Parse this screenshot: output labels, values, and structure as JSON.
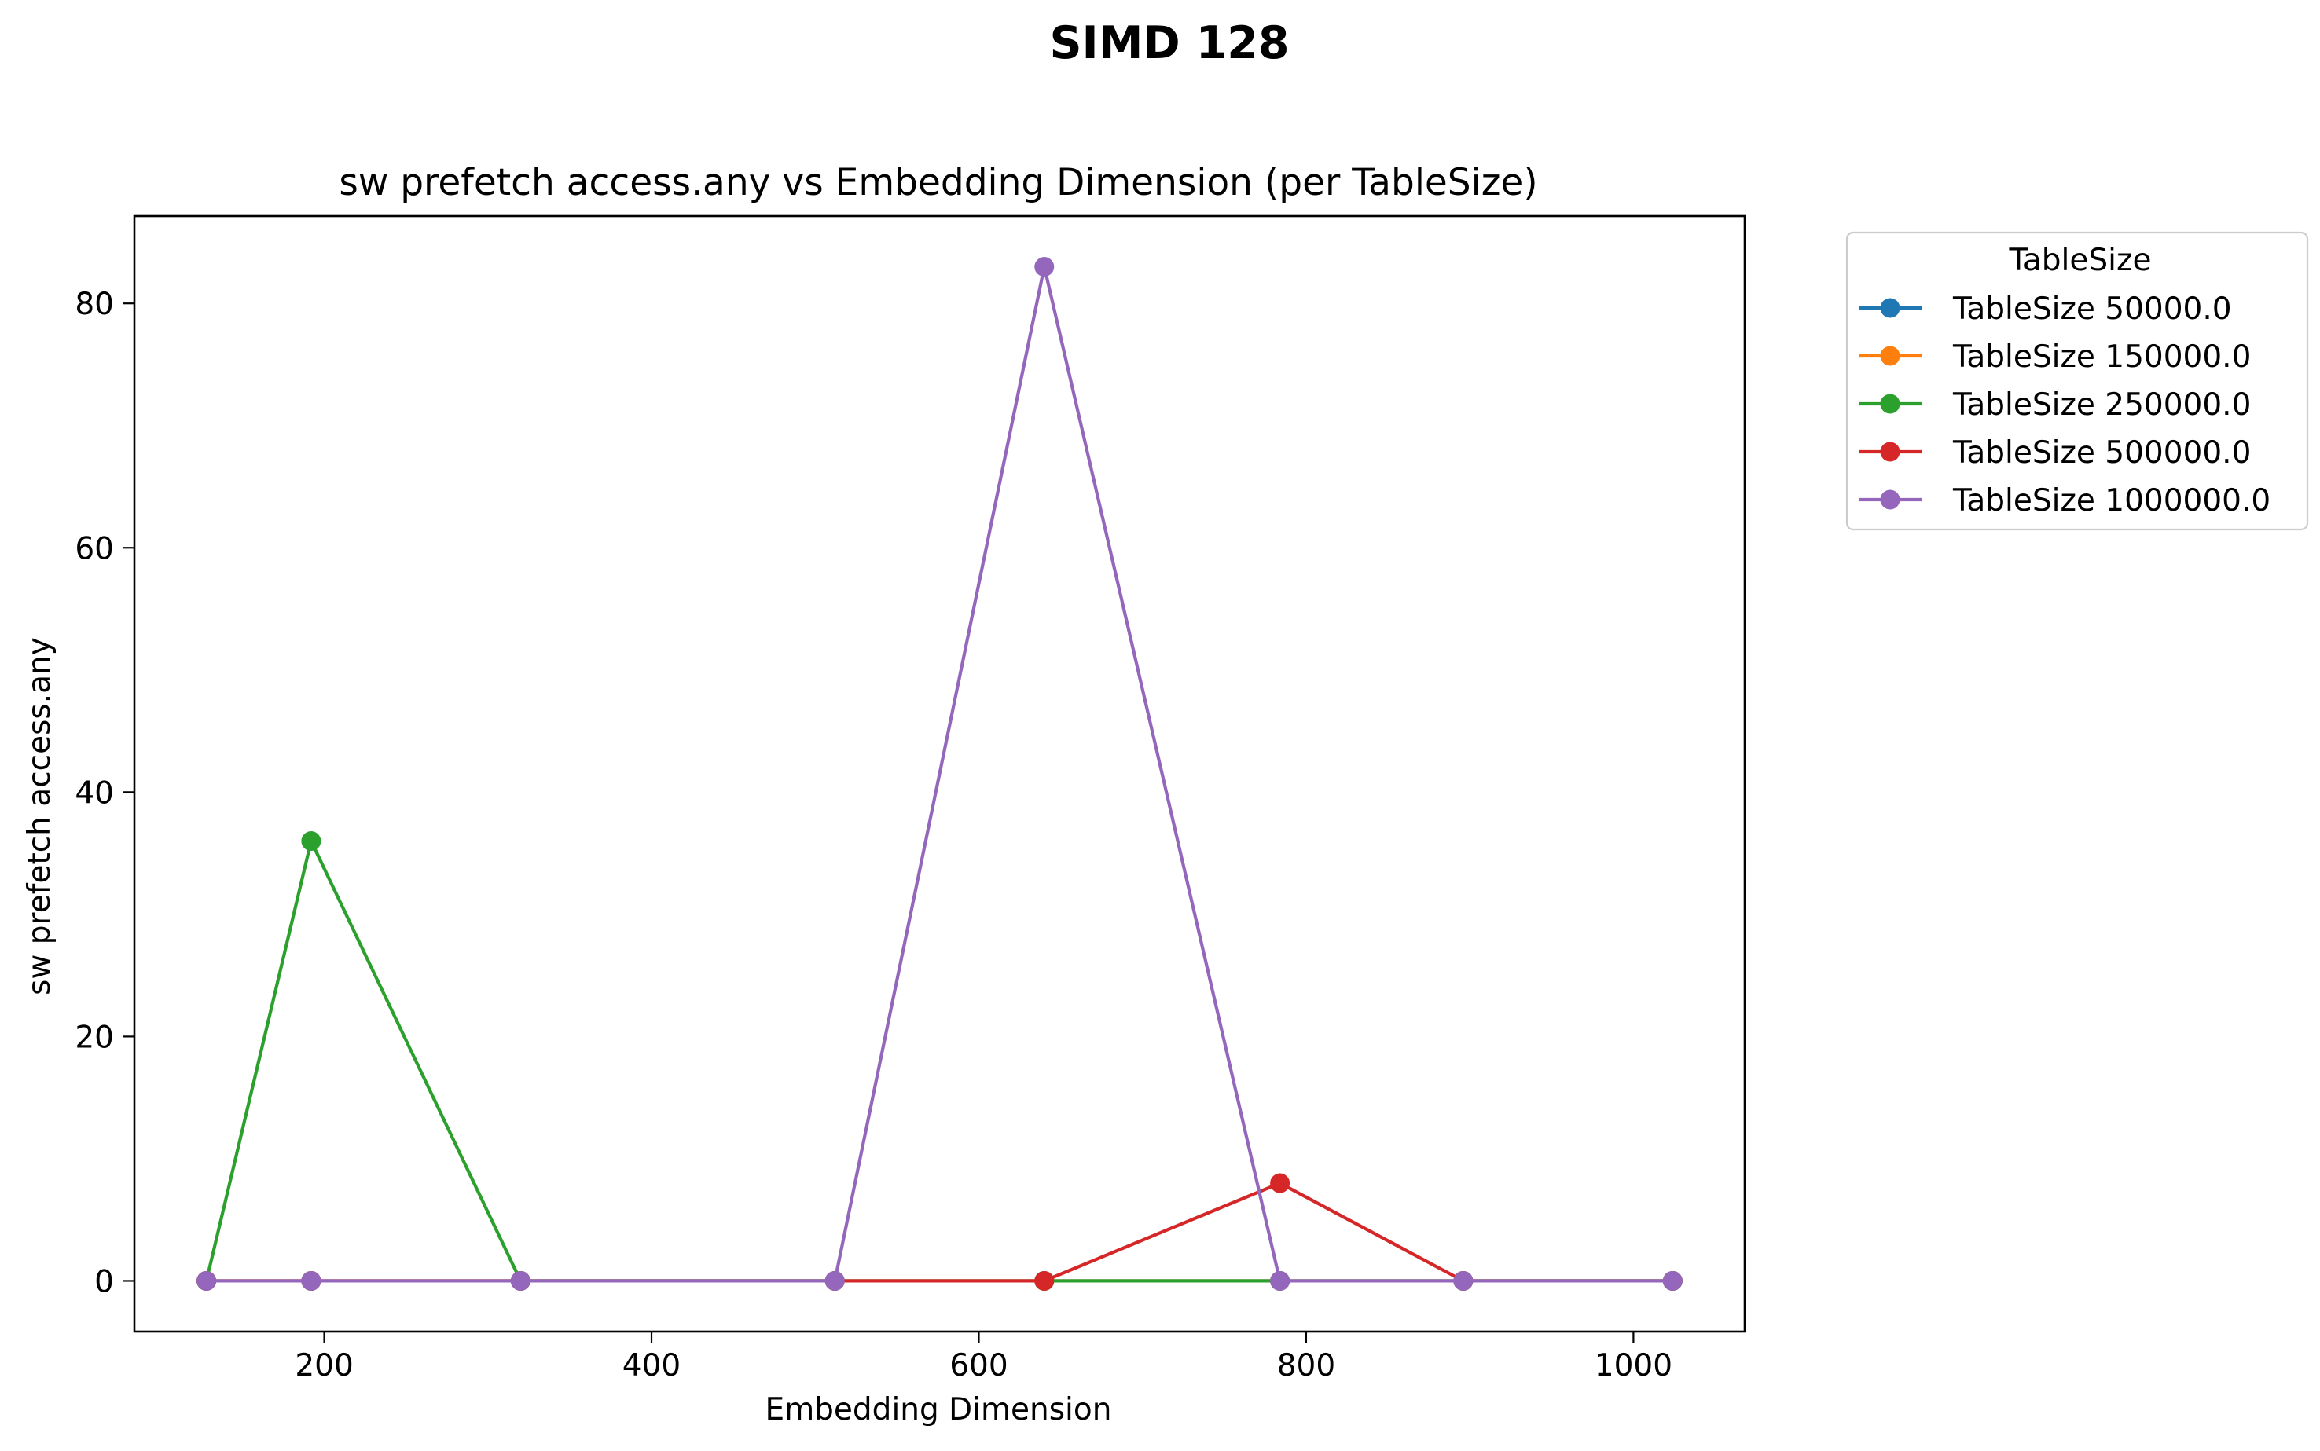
{
  "figure": {
    "suptitle": "SIMD 128"
  },
  "chart_data": {
    "type": "line",
    "title": "sw prefetch access.any vs Embedding Dimension (per TableSize)",
    "xlabel": "Embedding Dimension",
    "ylabel": "sw prefetch access.any",
    "xlim": [
      84,
      1068
    ],
    "ylim": [
      -4.15,
      87.15
    ],
    "xticks": [
      200,
      400,
      600,
      800,
      1000
    ],
    "yticks": [
      0,
      20,
      40,
      60,
      80
    ],
    "grid": false,
    "legend": {
      "title": "TableSize",
      "placement": "outside-upper-right"
    },
    "x": [
      128,
      192,
      320,
      512,
      640,
      784,
      896,
      1024
    ],
    "series": [
      {
        "name": "TableSize 50000.0",
        "color": "#1f77b4",
        "values": [
          0,
          0,
          0,
          0,
          0,
          0,
          0,
          0
        ]
      },
      {
        "name": "TableSize 150000.0",
        "color": "#ff7f0e",
        "values": [
          0,
          0,
          0,
          0,
          0,
          0,
          0,
          0
        ]
      },
      {
        "name": "TableSize 250000.0",
        "color": "#2ca02c",
        "values": [
          0,
          36,
          0,
          0,
          0,
          0,
          0,
          0
        ]
      },
      {
        "name": "TableSize 500000.0",
        "color": "#d62728",
        "values": [
          0,
          0,
          0,
          0,
          0,
          8,
          0,
          0
        ]
      },
      {
        "name": "TableSize 1000000.0",
        "color": "#9467bd",
        "values": [
          0,
          0,
          0,
          0,
          83,
          0,
          0,
          0
        ]
      }
    ]
  }
}
